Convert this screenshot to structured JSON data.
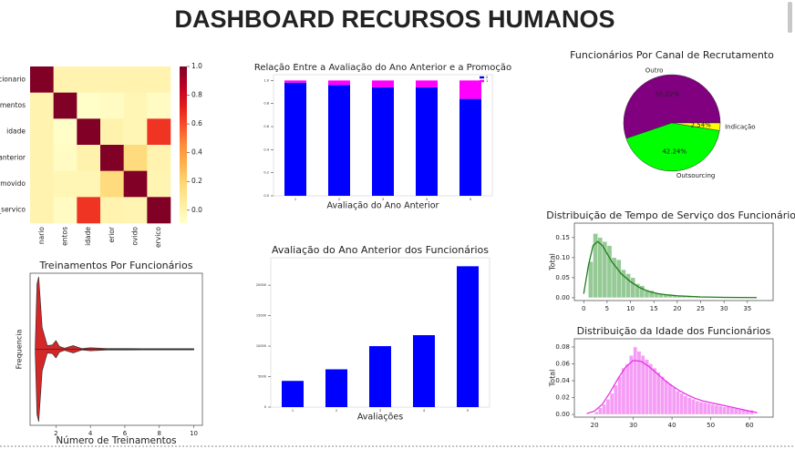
{
  "title": "DASHBOARD RECURSOS HUMANOS",
  "chart_data": [
    {
      "type": "heatmap",
      "row_labels": [
        "cionario",
        "amentos",
        "idade",
        "anterior",
        "omovido",
        "_servico"
      ],
      "col_labels": [
        "nario",
        "entos",
        "idade",
        "erior",
        "ovido",
        "ervico"
      ],
      "values": [
        [
          1,
          0.0,
          0.0,
          0.0,
          0.0,
          0.0
        ],
        [
          0.0,
          1,
          -0.08,
          -0.06,
          -0.02,
          -0.06
        ],
        [
          0.0,
          -0.08,
          1,
          0.01,
          -0.02,
          0.66
        ],
        [
          0.0,
          -0.06,
          0.01,
          1,
          0.16,
          0.0
        ],
        [
          0.0,
          -0.02,
          -0.02,
          0.16,
          1,
          -0.01
        ],
        [
          0.0,
          -0.06,
          0.66,
          0.0,
          -0.01,
          1
        ]
      ],
      "colormap": "YlOrRd",
      "clim": [
        -0.09,
        1
      ],
      "cticks": [
        {
          "value": 0,
          "label": "0.0"
        },
        {
          "value": 0.2,
          "label": "0.2"
        },
        {
          "value": 0.4,
          "label": "0.4"
        },
        {
          "value": 0.6,
          "label": "0.6"
        },
        {
          "value": 0.8,
          "label": "0.8"
        },
        {
          "value": 1,
          "label": "1.0"
        }
      ]
    },
    {
      "type": "stacked_bar",
      "title": "Relação Entre a Avaliação do Ano Anterior e a Promoção",
      "x_label": "Avaliação do Ano Anterior",
      "categories": [
        "1",
        "2",
        "3",
        "4",
        "5"
      ],
      "series": [
        {
          "name": "0",
          "color": "#0000ff",
          "values": [
            0.98,
            0.96,
            0.94,
            0.94,
            0.84
          ]
        },
        {
          "name": "1",
          "color": "#ff00ff",
          "values": [
            0.02,
            0.04,
            0.06,
            0.06,
            0.16
          ]
        }
      ],
      "ylim": [
        0,
        1.05
      ],
      "yticks": [
        {
          "value": 0,
          "label": "0.0"
        },
        {
          "value": 0.2,
          "label": "0.2"
        },
        {
          "value": 0.4,
          "label": "0.4"
        },
        {
          "value": 0.6,
          "label": "0.6"
        },
        {
          "value": 0.8,
          "label": "0.8"
        },
        {
          "value": 1,
          "label": "1.0"
        }
      ]
    },
    {
      "type": "pie",
      "title": "Funcionários Por Canal de Recrutamento",
      "categories": [
        "Outro",
        "Outsourcing",
        "Indicação"
      ],
      "values": [
        55.22,
        42.24,
        2.54
      ],
      "value_labels": [
        "55.22%",
        "42.24%",
        "2.54%"
      ],
      "colors": [
        "#800080",
        "#00ff00",
        "#ffff00"
      ]
    },
    {
      "type": "violin",
      "title": "Treinamentos Por Funcionários",
      "x_label": "Número de Treinamentos",
      "y_label": "Frequencia",
      "x": [
        0.8,
        0.9,
        1,
        1.2,
        1.5,
        1.8,
        2,
        2.2,
        2.5,
        3,
        3.5,
        4,
        5,
        6,
        7,
        8,
        9,
        10
      ],
      "values": [
        0.05,
        0.9,
        1,
        0.3,
        0.05,
        0.06,
        0.12,
        0.04,
        0.015,
        0.05,
        0.01,
        0.02,
        0.01,
        0.01,
        0.008,
        0.008,
        0.008,
        0.008
      ],
      "color": "#d62728",
      "xlim": [
        0.5,
        10.5
      ],
      "ylim": [
        0,
        1
      ],
      "xticks": [
        2,
        4,
        6,
        8,
        10
      ]
    },
    {
      "type": "bar",
      "title": "Avaliação do Ano Anterior dos Funcionários",
      "x_label": "Avaliações",
      "categories": [
        "1",
        "2",
        "3",
        "4",
        "5"
      ],
      "values": [
        4300,
        6200,
        10000,
        11800,
        23100
      ],
      "color": "#0000ff",
      "ylim": [
        0,
        24500
      ],
      "yticks": [
        0,
        5000,
        10000,
        15000,
        20000
      ]
    },
    {
      "type": "histogram",
      "title": "Distribuição de Tempo de Serviço dos Funcionários",
      "y_label": "Total",
      "bins": [
        1,
        2,
        3,
        4,
        5,
        6,
        7,
        8,
        9,
        10,
        11,
        12,
        13,
        14,
        15,
        16,
        17,
        18,
        19,
        20,
        21,
        22,
        23,
        24,
        25,
        26,
        27,
        28,
        29,
        30,
        31,
        32,
        33,
        34,
        35,
        36,
        37,
        38
      ],
      "values": [
        0.09,
        0.16,
        0.15,
        0.14,
        0.13,
        0.1,
        0.095,
        0.07,
        0.06,
        0.05,
        0.035,
        0.03,
        0.02,
        0.018,
        0.012,
        0.01,
        0.008,
        0.006,
        0.006,
        0.005,
        0.004,
        0.003,
        0.002,
        0.002,
        0.002,
        0.001,
        0.001,
        0.001,
        0.001,
        0.0005,
        0.0005,
        0.0005,
        0.0003,
        0.0003,
        0.0002,
        0.0002,
        0.0002
      ],
      "color": "#95c995",
      "kde": {
        "color": "#1e7d1e",
        "x": [
          0,
          1,
          2,
          3,
          4,
          5,
          6,
          7,
          8,
          10,
          12,
          14,
          16,
          18,
          20,
          25,
          30,
          37
        ],
        "values": [
          0.01,
          0.08,
          0.13,
          0.14,
          0.13,
          0.11,
          0.09,
          0.075,
          0.06,
          0.04,
          0.025,
          0.015,
          0.01,
          0.007,
          0.005,
          0.002,
          0.001,
          0.0003
        ]
      },
      "xlim": [
        -2,
        40.5
      ],
      "ylim": [
        -0.007,
        0.186
      ],
      "xticks": [
        0,
        5,
        10,
        15,
        20,
        25,
        30,
        35
      ],
      "yticks": [
        {
          "value": 0,
          "label": "0.00"
        },
        {
          "value": 0.05,
          "label": "0.05"
        },
        {
          "value": 0.1,
          "label": "0.10"
        },
        {
          "value": 0.15,
          "label": "0.15"
        }
      ]
    },
    {
      "type": "histogram",
      "title": "Distribuição da Idade dos Funcionários",
      "y_label": "Total",
      "bins": [
        20,
        21,
        22,
        23,
        24,
        25,
        26,
        27,
        28,
        29,
        30,
        31,
        32,
        33,
        34,
        35,
        36,
        37,
        38,
        39,
        40,
        41,
        42,
        43,
        44,
        45,
        46,
        47,
        48,
        49,
        50,
        51,
        52,
        53,
        54,
        55,
        56,
        57,
        58,
        59,
        60,
        61
      ],
      "values": [
        0.003,
        0.008,
        0.012,
        0.018,
        0.025,
        0.035,
        0.045,
        0.055,
        0.06,
        0.07,
        0.08,
        0.075,
        0.07,
        0.065,
        0.06,
        0.055,
        0.05,
        0.045,
        0.04,
        0.036,
        0.032,
        0.028,
        0.025,
        0.022,
        0.02,
        0.018,
        0.016,
        0.015,
        0.014,
        0.013,
        0.012,
        0.011,
        0.01,
        0.009,
        0.009,
        0.008,
        0.007,
        0.006,
        0.006,
        0.005,
        0.005
      ],
      "color": "#f59cf5",
      "kde": {
        "color": "#e832e8",
        "x": [
          18,
          20,
          22,
          24,
          26,
          28,
          30,
          32,
          34,
          36,
          38,
          40,
          42,
          44,
          46,
          48,
          50,
          52,
          54,
          56,
          58,
          60,
          62
        ],
        "values": [
          0.001,
          0.004,
          0.012,
          0.026,
          0.042,
          0.056,
          0.064,
          0.063,
          0.057,
          0.049,
          0.041,
          0.034,
          0.028,
          0.023,
          0.019,
          0.016,
          0.014,
          0.012,
          0.01,
          0.008,
          0.006,
          0.004,
          0.002
        ]
      },
      "xlim": [
        14.8,
        66.1
      ],
      "ylim": [
        -0.0032,
        0.0897
      ],
      "xticks": [
        20,
        30,
        40,
        50,
        60
      ],
      "yticks": [
        {
          "value": 0,
          "label": "0.00"
        },
        {
          "value": 0.02,
          "label": "0.02"
        },
        {
          "value": 0.04,
          "label": "0.04"
        },
        {
          "value": 0.06,
          "label": "0.06"
        },
        {
          "value": 0.08,
          "label": "0.08"
        }
      ]
    }
  ]
}
